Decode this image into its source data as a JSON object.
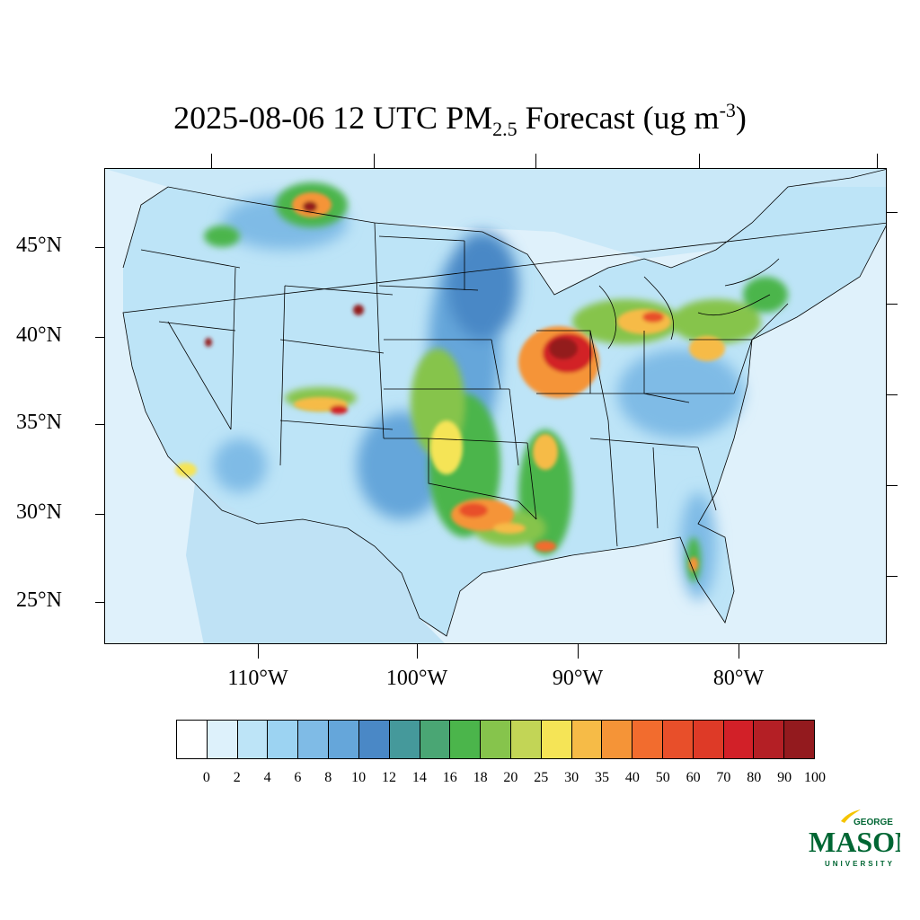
{
  "title": {
    "prefix": "2025-08-06 12 UTC PM",
    "subscript": "2.5",
    "middle": " Forecast (ug m",
    "superscript": "-3",
    "suffix": ")"
  },
  "map": {
    "region": "Contiguous United States",
    "variable": "PM2.5",
    "latitude_labels": [
      "45°N",
      "40°N",
      "35°N",
      "30°N",
      "25°N"
    ],
    "longitude_labels": [
      "110°W",
      "100°W",
      "90°W",
      "80°W"
    ],
    "highlights": [
      {
        "area": "Illinois / Missouri",
        "level": "90-100"
      },
      {
        "area": "Oklahoma / Texas",
        "level": "30-60"
      },
      {
        "area": "Nebraska / Kansas plains",
        "level": "16-30"
      },
      {
        "area": "Great Lakes / Ohio",
        "level": "25-60"
      },
      {
        "area": "Northern Rockies",
        "level": "50-90"
      }
    ]
  },
  "colorbar": {
    "labels": [
      "0",
      "2",
      "4",
      "6",
      "8",
      "10",
      "12",
      "14",
      "16",
      "18",
      "20",
      "25",
      "30",
      "35",
      "40",
      "50",
      "60",
      "70",
      "80",
      "90",
      "100"
    ],
    "colors": [
      "#ffffff",
      "#ddf1fb",
      "#bde4f7",
      "#9cd3f2",
      "#7fbbe6",
      "#65a6da",
      "#4a88c6",
      "#45999b",
      "#4aa674",
      "#4bb54b",
      "#86c44c",
      "#c2d556",
      "#f5e456",
      "#f6bb47",
      "#f59437",
      "#f26c2e",
      "#e84f2a",
      "#de3a27",
      "#d22028",
      "#b41f25",
      "#931a1e"
    ]
  },
  "logo": {
    "top": "GEORGE",
    "main": "MASON",
    "bottom": "UNIVERSITY",
    "color": "#006633",
    "accent": "#f5c400"
  }
}
